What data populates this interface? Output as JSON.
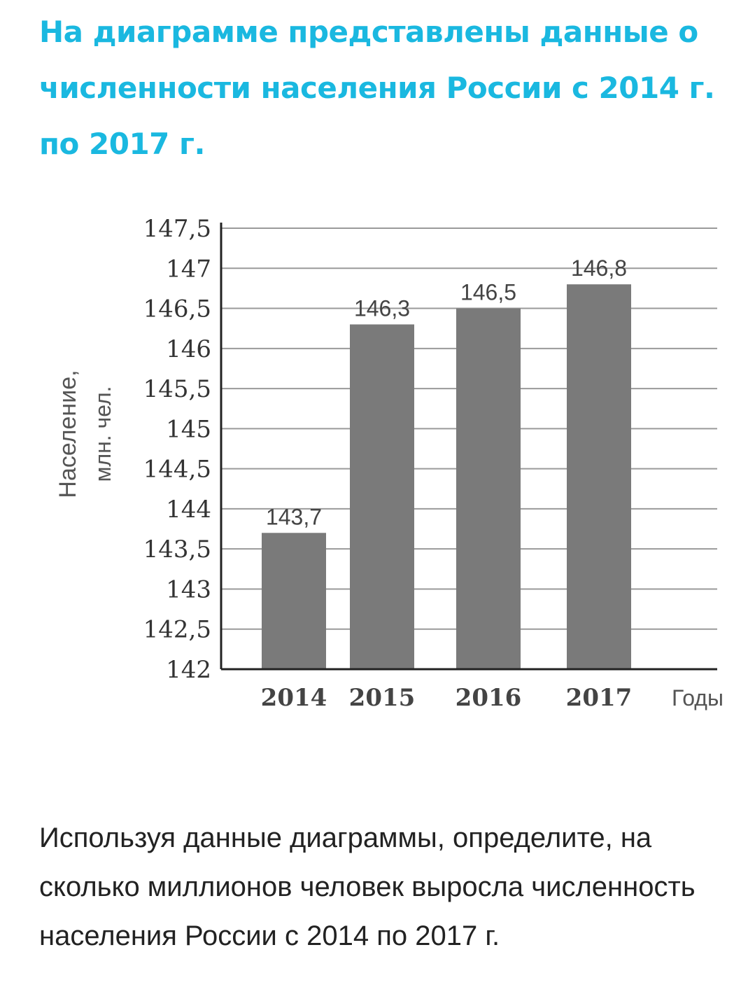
{
  "header": {
    "title": "На диаграмме представлены данные о численности населения России с 2014 г. по 2017 г."
  },
  "chart_data": {
    "type": "bar",
    "categories": [
      "2014",
      "2015",
      "2016",
      "2017"
    ],
    "values": [
      143.7,
      146.3,
      146.5,
      146.8
    ],
    "value_labels": [
      "143,7",
      "146,3",
      "146,5",
      "146,8"
    ],
    "ylabel_line1": "Население,",
    "ylabel_line2": "млн. чел.",
    "xlabel": "Годы",
    "ylim": [
      142,
      147.5
    ],
    "yticks": [
      142,
      142.5,
      143,
      143.5,
      144,
      144.5,
      145,
      145.5,
      146,
      146.5,
      147,
      147.5
    ],
    "ytick_labels": [
      "142",
      "142,5",
      "143",
      "143,5",
      "144",
      "144,5",
      "145",
      "145,5",
      "146",
      "146,5",
      "147",
      "147,5"
    ],
    "grid": true,
    "bar_color": "#7a7a7a"
  },
  "question": {
    "text": "Используя данные диаграммы, определите, на сколько миллионов человек выросла численность населения России с 2014 по 2017 г."
  }
}
